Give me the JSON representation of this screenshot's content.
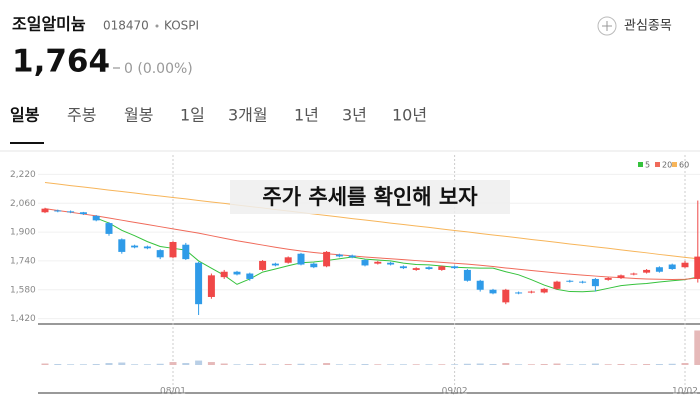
{
  "header": {
    "name": "조일알미늄",
    "code": "018470",
    "market": "KOSPI",
    "watch": "관심종목",
    "price": "1,764",
    "change": "0 (0.00%)"
  },
  "tabs": [
    "일봉",
    "주봉",
    "월봉",
    "1일",
    "3개월",
    "1년",
    "3년",
    "10년"
  ],
  "overlay": "주가 추세를 확인해 보자",
  "chart_data": {
    "type": "candlestick",
    "categories": [
      null,
      null,
      null,
      null,
      null,
      null,
      null,
      null,
      null,
      null,
      "08/01",
      null,
      null,
      null,
      null,
      null,
      null,
      null,
      null,
      null,
      null,
      null,
      null,
      null,
      null,
      null,
      null,
      null,
      null,
      null,
      null,
      null,
      "09/02",
      null,
      null,
      null,
      null,
      null,
      null,
      null,
      null,
      null,
      null,
      null,
      null,
      null,
      null,
      null,
      null,
      null,
      "10/02",
      null
    ],
    "open": [
      2010,
      2020,
      2015,
      2010,
      1990,
      1950,
      1860,
      1825,
      1820,
      1800,
      1760,
      1830,
      1730,
      1540,
      1650,
      1680,
      1670,
      1690,
      1725,
      1730,
      1780,
      1725,
      1710,
      1775,
      1770,
      1745,
      1725,
      1730,
      1710,
      1690,
      1705,
      1690,
      1710,
      1690,
      1630,
      1580,
      1510,
      1565,
      1565,
      1565,
      1585,
      1630,
      1625,
      1640,
      1635,
      1645,
      1665,
      1675,
      1705,
      1720,
      1705,
      1640
    ],
    "high": [
      2035,
      2025,
      2020,
      2012,
      1995,
      1955,
      1865,
      1830,
      1825,
      1805,
      1850,
      1840,
      1735,
      1670,
      1690,
      1685,
      1675,
      1745,
      1730,
      1765,
      1785,
      1730,
      1795,
      1780,
      1775,
      1750,
      1740,
      1735,
      1715,
      1705,
      1710,
      1715,
      1715,
      1695,
      1635,
      1585,
      1585,
      1570,
      1575,
      1590,
      1630,
      1635,
      1630,
      1645,
      1650,
      1665,
      1675,
      1695,
      1710,
      1725,
      1740,
      2075
    ],
    "low": [
      2005,
      2010,
      2005,
      1995,
      1960,
      1880,
      1780,
      1810,
      1805,
      1750,
      1755,
      1745,
      1440,
      1530,
      1640,
      1660,
      1630,
      1685,
      1710,
      1725,
      1715,
      1700,
      1705,
      1760,
      1755,
      1710,
      1720,
      1715,
      1695,
      1685,
      1690,
      1685,
      1695,
      1625,
      1570,
      1555,
      1500,
      1555,
      1560,
      1560,
      1580,
      1620,
      1615,
      1570,
      1630,
      1640,
      1660,
      1670,
      1675,
      1690,
      1700,
      1620
    ],
    "close": [
      2030,
      2015,
      2010,
      2000,
      1965,
      1890,
      1790,
      1815,
      1810,
      1760,
      1845,
      1750,
      1500,
      1660,
      1680,
      1665,
      1640,
      1740,
      1715,
      1760,
      1720,
      1705,
      1790,
      1765,
      1760,
      1715,
      1735,
      1720,
      1700,
      1700,
      1695,
      1710,
      1700,
      1630,
      1580,
      1560,
      1580,
      1560,
      1570,
      1585,
      1625,
      1625,
      1620,
      1600,
      1645,
      1660,
      1670,
      1690,
      1680,
      1695,
      1730,
      1764
    ],
    "volume": [
      30000,
      20000,
      15000,
      15000,
      20000,
      40000,
      50000,
      15000,
      15000,
      25000,
      60000,
      40000,
      90000,
      60000,
      30000,
      15000,
      20000,
      25000,
      15000,
      20000,
      25000,
      15000,
      40000,
      15000,
      15000,
      20000,
      15000,
      15000,
      15000,
      15000,
      15000,
      15000,
      15000,
      25000,
      30000,
      20000,
      40000,
      15000,
      15000,
      20000,
      30000,
      15000,
      15000,
      30000,
      15000,
      20000,
      15000,
      20000,
      20000,
      25000,
      40000,
      700000
    ],
    "volume_lim": [
      0,
      750000
    ],
    "up_color": "#f04848",
    "down_color": "#2f9be8",
    "series": [
      {
        "name": "5",
        "color": "#35c23c",
        "values": [
          null,
          null,
          null,
          null,
          1978,
          1950,
          1910,
          1880,
          1847,
          1820,
          1810,
          1800,
          1740,
          1700,
          1660,
          1610,
          1640,
          1678,
          1695,
          1713,
          1730,
          1734,
          1742,
          1752,
          1762,
          1750,
          1745,
          1740,
          1728,
          1720,
          1718,
          1712,
          1705,
          1702,
          1700,
          1700,
          1680,
          1663,
          1636,
          1606,
          1582,
          1570,
          1569,
          1573,
          1588,
          1603,
          1610,
          1615,
          1623,
          1630,
          1636,
          1650
        ]
      },
      {
        "name": "20",
        "color": "#f06a5a",
        "values": [
          2030,
          2020,
          2010,
          2000,
          1990,
          1978,
          1966,
          1954,
          1942,
          1930,
          1918,
          1906,
          1894,
          1880,
          1866,
          1852,
          1840,
          1828,
          1816,
          1805,
          1795,
          1787,
          1780,
          1774,
          1768,
          1762,
          1757,
          1752,
          1747,
          1742,
          1737,
          1732,
          1727,
          1722,
          1716,
          1709,
          1701,
          1694,
          1687,
          1680,
          1673,
          1667,
          1661,
          1656,
          1651,
          1647,
          1643,
          1640,
          1638,
          1637,
          1638,
          1645
        ]
      },
      {
        "name": "60",
        "color": "#f7b55a",
        "values": [
          2175,
          2167,
          2158,
          2150,
          2142,
          2133,
          2125,
          2117,
          2108,
          2100,
          2092,
          2084,
          2075,
          2067,
          2059,
          2050,
          2042,
          2034,
          2025,
          2017,
          2009,
          2000,
          1992,
          1984,
          1975,
          1967,
          1959,
          1950,
          1942,
          1934,
          1926,
          1917,
          1909,
          1901,
          1892,
          1884,
          1876,
          1868,
          1859,
          1851,
          1843,
          1834,
          1826,
          1818,
          1810,
          1801,
          1793,
          1785,
          1776,
          1768,
          1760,
          1752
        ]
      }
    ],
    "ylim": [
      1390,
      2300
    ],
    "yticks": [
      {
        "value": 2220,
        "label": "2,220"
      },
      {
        "value": 2060,
        "label": "2,060"
      },
      {
        "value": 1900,
        "label": "1,900"
      },
      {
        "value": 1740,
        "label": "1,740"
      },
      {
        "value": 1580,
        "label": "1,580"
      },
      {
        "value": 1420,
        "label": "1,420"
      }
    ],
    "grid": true,
    "legend": "top-right"
  }
}
